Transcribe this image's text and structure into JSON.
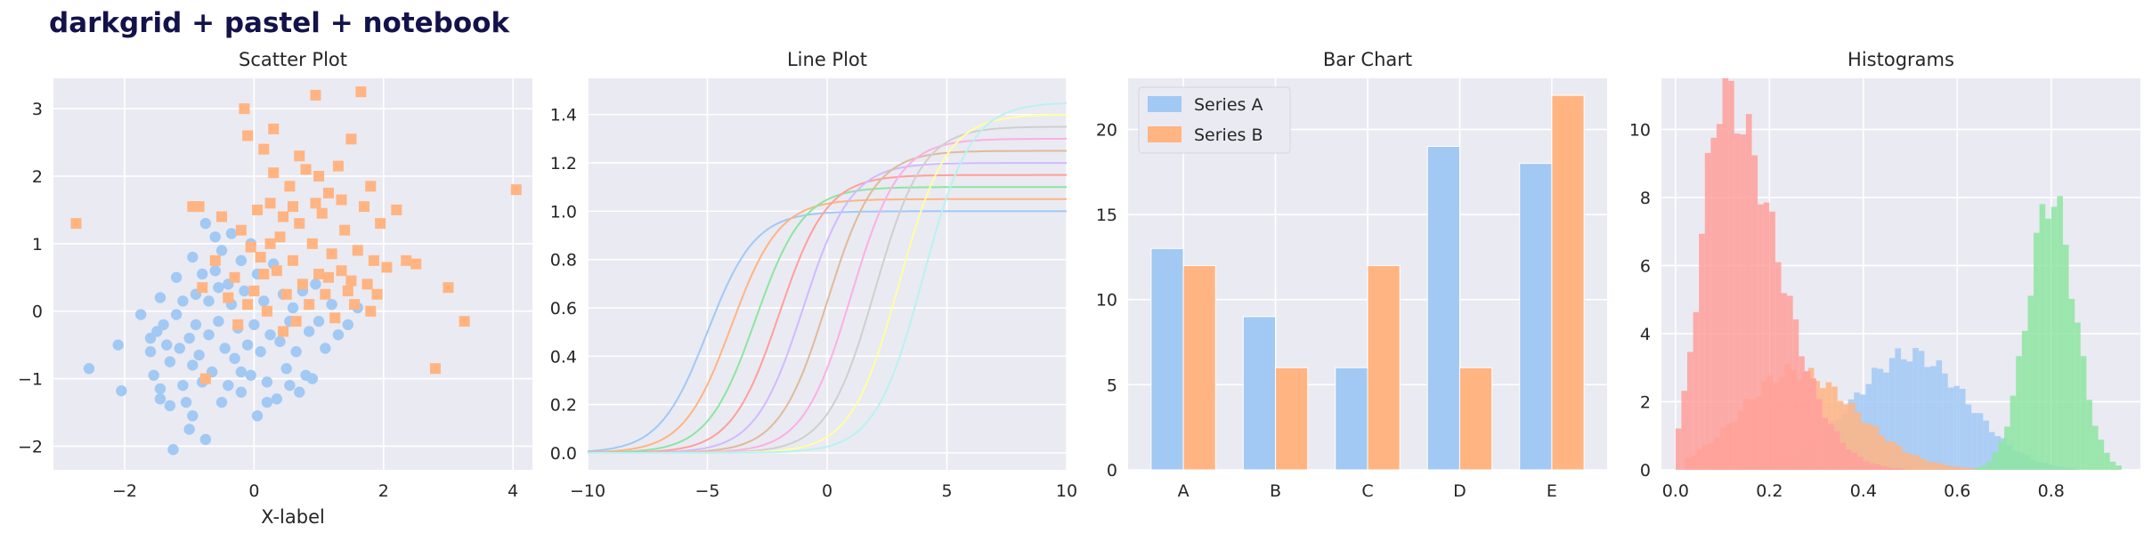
{
  "suptitle": "darkgrid + pastel + notebook",
  "style": {
    "axes_bg": "#eaeaf2",
    "grid": "#ffffff",
    "palette": [
      "#a1c9f4",
      "#ffb482",
      "#8de5a1",
      "#ff9f9b",
      "#d0bbff",
      "#debb9b",
      "#fab0e4",
      "#cfcfcf",
      "#fffea3",
      "#b9f2f0"
    ]
  },
  "chart_data": [
    {
      "type": "scatter",
      "title": "Scatter Plot",
      "xlabel": "X-label",
      "ylabel": "",
      "xlim": [
        -3.1,
        4.3
      ],
      "ylim": [
        -2.35,
        3.45
      ],
      "xticks": [
        -2,
        0,
        2,
        4
      ],
      "yticks": [
        -2,
        -1,
        0,
        1,
        2,
        3
      ],
      "grid": true,
      "series": [
        {
          "marker": "circle",
          "color": "#a1c9f4",
          "points": [
            [
              -2.55,
              -0.85
            ],
            [
              -2.05,
              -1.18
            ],
            [
              -2.1,
              -0.5
            ],
            [
              -1.75,
              -0.05
            ],
            [
              -1.6,
              -0.4
            ],
            [
              -1.6,
              -0.6
            ],
            [
              -1.55,
              -0.95
            ],
            [
              -1.5,
              -0.3
            ],
            [
              -1.45,
              -1.15
            ],
            [
              -1.45,
              0.2
            ],
            [
              -1.4,
              -0.2
            ],
            [
              -1.35,
              -0.5
            ],
            [
              -1.3,
              -1.4
            ],
            [
              -1.3,
              -0.75
            ],
            [
              -1.25,
              -2.05
            ],
            [
              -1.2,
              0.5
            ],
            [
              -1.2,
              -0.05
            ],
            [
              -1.15,
              -0.55
            ],
            [
              -1.1,
              -1.1
            ],
            [
              -1.1,
              0.15
            ],
            [
              -1.05,
              -1.35
            ],
            [
              -1.0,
              -1.75
            ],
            [
              -1.0,
              -0.4
            ],
            [
              -0.95,
              0.8
            ],
            [
              -0.95,
              -0.8
            ],
            [
              -0.9,
              0.25
            ],
            [
              -0.9,
              -0.2
            ],
            [
              -0.85,
              -0.65
            ],
            [
              -0.8,
              0.55
            ],
            [
              -0.8,
              -1.05
            ],
            [
              -0.75,
              1.3
            ],
            [
              -0.75,
              -1.9
            ],
            [
              -0.7,
              0.15
            ],
            [
              -0.7,
              -0.35
            ],
            [
              -0.65,
              -0.9
            ],
            [
              -0.6,
              1.1
            ],
            [
              -0.6,
              0.6
            ],
            [
              -0.55,
              -0.15
            ],
            [
              -0.5,
              -1.35
            ],
            [
              -0.5,
              0.9
            ],
            [
              -0.45,
              -0.55
            ],
            [
              -0.4,
              0.4
            ],
            [
              -0.4,
              -1.1
            ],
            [
              -0.35,
              1.15
            ],
            [
              -0.35,
              0.1
            ],
            [
              -0.3,
              -0.7
            ],
            [
              -0.25,
              -0.25
            ],
            [
              -0.2,
              0.75
            ],
            [
              -0.2,
              -1.2
            ],
            [
              -0.15,
              0.3
            ],
            [
              -0.1,
              -0.5
            ],
            [
              -0.05,
              -0.95
            ],
            [
              -0.05,
              1.0
            ],
            [
              0.0,
              -0.2
            ],
            [
              0.05,
              -1.55
            ],
            [
              0.05,
              0.55
            ],
            [
              0.1,
              -0.6
            ],
            [
              0.15,
              0.15
            ],
            [
              0.2,
              -1.05
            ],
            [
              0.25,
              -0.35
            ],
            [
              0.3,
              0.7
            ],
            [
              0.35,
              -1.3
            ],
            [
              0.4,
              -0.45
            ],
            [
              0.45,
              0.25
            ],
            [
              0.5,
              -0.85
            ],
            [
              0.55,
              -1.1
            ],
            [
              0.6,
              0.05
            ],
            [
              0.65,
              -0.6
            ],
            [
              0.7,
              -1.2
            ],
            [
              0.75,
              0.3
            ],
            [
              0.8,
              -0.95
            ],
            [
              0.85,
              -0.3
            ],
            [
              0.9,
              -1.0
            ],
            [
              0.95,
              0.4
            ],
            [
              1.0,
              -0.15
            ],
            [
              1.1,
              -0.55
            ],
            [
              1.2,
              0.1
            ],
            [
              1.3,
              -0.35
            ],
            [
              1.45,
              -0.2
            ],
            [
              1.6,
              0.05
            ],
            [
              -0.95,
              -1.55
            ],
            [
              -0.55,
              0.35
            ],
            [
              0.2,
              -1.35
            ],
            [
              -0.2,
              -0.9
            ],
            [
              0.55,
              -0.15
            ],
            [
              -1.45,
              -1.3
            ]
          ]
        },
        {
          "marker": "square",
          "color": "#ffb482",
          "points": [
            [
              -2.75,
              1.3
            ],
            [
              -0.95,
              1.55
            ],
            [
              -0.85,
              1.55
            ],
            [
              -0.75,
              -1.0
            ],
            [
              -0.6,
              0.75
            ],
            [
              -0.5,
              1.4
            ],
            [
              -0.4,
              0.2
            ],
            [
              -0.3,
              0.5
            ],
            [
              -0.2,
              1.2
            ],
            [
              -0.15,
              3.0
            ],
            [
              -0.1,
              0.1
            ],
            [
              -0.1,
              2.6
            ],
            [
              -0.05,
              0.95
            ],
            [
              0.0,
              0.3
            ],
            [
              0.05,
              1.5
            ],
            [
              0.1,
              0.8
            ],
            [
              0.15,
              2.4
            ],
            [
              0.2,
              0.0
            ],
            [
              0.25,
              1.6
            ],
            [
              0.3,
              2.05
            ],
            [
              0.35,
              0.6
            ],
            [
              0.4,
              1.1
            ],
            [
              0.45,
              -0.3
            ],
            [
              0.5,
              0.25
            ],
            [
              0.55,
              1.85
            ],
            [
              0.6,
              0.75
            ],
            [
              0.65,
              -0.15
            ],
            [
              0.7,
              1.3
            ],
            [
              0.75,
              0.4
            ],
            [
              0.8,
              2.1
            ],
            [
              0.85,
              0.1
            ],
            [
              0.9,
              1.0
            ],
            [
              0.95,
              3.2
            ],
            [
              1.0,
              0.55
            ],
            [
              1.05,
              1.45
            ],
            [
              1.1,
              0.25
            ],
            [
              1.15,
              1.75
            ],
            [
              1.2,
              0.85
            ],
            [
              1.25,
              -0.1
            ],
            [
              1.3,
              2.15
            ],
            [
              1.35,
              0.6
            ],
            [
              1.4,
              1.2
            ],
            [
              1.45,
              0.3
            ],
            [
              1.5,
              2.55
            ],
            [
              1.55,
              0.1
            ],
            [
              1.6,
              0.9
            ],
            [
              1.65,
              3.25
            ],
            [
              1.7,
              1.55
            ],
            [
              1.75,
              0.4
            ],
            [
              1.8,
              1.85
            ],
            [
              1.85,
              0.75
            ],
            [
              1.9,
              0.25
            ],
            [
              1.95,
              1.3
            ],
            [
              2.05,
              0.65
            ],
            [
              2.2,
              1.5
            ],
            [
              2.35,
              0.75
            ],
            [
              2.5,
              0.7
            ],
            [
              2.8,
              -0.85
            ],
            [
              3.0,
              0.35
            ],
            [
              3.25,
              -0.15
            ],
            [
              4.05,
              1.8
            ],
            [
              -0.25,
              -0.2
            ],
            [
              0.3,
              2.7
            ],
            [
              0.95,
              1.6
            ],
            [
              1.35,
              1.65
            ],
            [
              0.6,
              1.55
            ],
            [
              1.15,
              0.5
            ],
            [
              0.45,
              1.4
            ],
            [
              1.8,
              0.0
            ],
            [
              0.15,
              0.55
            ],
            [
              -0.8,
              0.35
            ],
            [
              0.7,
              2.3
            ],
            [
              1.5,
              0.45
            ],
            [
              1.0,
              2.0
            ],
            [
              0.25,
              1.0
            ]
          ]
        }
      ]
    },
    {
      "type": "line",
      "title": "Line Plot",
      "xlabel": "",
      "ylabel": "",
      "xlim": [
        -10,
        10
      ],
      "ylim": [
        -0.07,
        1.55
      ],
      "xticks": [
        -10,
        -5,
        0,
        5,
        10
      ],
      "yticks": [
        0.0,
        0.2,
        0.4,
        0.6,
        0.8,
        1.0,
        1.2,
        1.4
      ],
      "grid": true,
      "series": [
        {
          "color": "#a1c9f4",
          "center": -5,
          "amplitude": 1.0
        },
        {
          "color": "#ffb482",
          "center": -4,
          "amplitude": 1.05
        },
        {
          "color": "#8de5a1",
          "center": -3,
          "amplitude": 1.1
        },
        {
          "color": "#ff9f9b",
          "center": -2,
          "amplitude": 1.15
        },
        {
          "color": "#d0bbff",
          "center": -1,
          "amplitude": 1.2
        },
        {
          "color": "#debb9b",
          "center": 0,
          "amplitude": 1.25
        },
        {
          "color": "#fab0e4",
          "center": 1,
          "amplitude": 1.3
        },
        {
          "color": "#cfcfcf",
          "center": 2,
          "amplitude": 1.35
        },
        {
          "color": "#fffea3",
          "center": 3,
          "amplitude": 1.4
        },
        {
          "color": "#b9f2f0",
          "center": 4,
          "amplitude": 1.45
        }
      ]
    },
    {
      "type": "bar",
      "title": "Bar Chart",
      "xlabel": "",
      "ylabel": "",
      "categories": [
        "A",
        "B",
        "C",
        "D",
        "E"
      ],
      "ylim": [
        0,
        23
      ],
      "yticks": [
        0,
        5,
        10,
        15,
        20
      ],
      "grid": true,
      "legend_placement": "top-left",
      "series": [
        {
          "name": "Series A",
          "color": "#a1c9f4",
          "values": [
            13,
            9,
            6,
            19,
            18
          ]
        },
        {
          "name": "Series B",
          "color": "#ffb482",
          "values": [
            12,
            6,
            12,
            6,
            22
          ]
        }
      ]
    },
    {
      "type": "histogram",
      "title": "Histograms",
      "xlabel": "",
      "ylabel": "",
      "xlim": [
        -0.03,
        0.99
      ],
      "ylim": [
        0,
        11.5
      ],
      "xticks": [
        0.0,
        0.2,
        0.4,
        0.6,
        0.8
      ],
      "yticks": [
        0,
        2,
        4,
        6,
        8,
        10
      ],
      "grid": true,
      "series": [
        {
          "color": "#a1c9f4",
          "mean": 0.5,
          "sd": 0.12,
          "peak": 3.4,
          "range": [
            0.13,
            0.85
          ]
        },
        {
          "color": "#ffb482",
          "mean": 0.25,
          "sd": 0.11,
          "peak": 2.9,
          "range": [
            0.02,
            0.68
          ],
          "skew": 1.2
        },
        {
          "color": "#8de5a1",
          "mean": 0.8,
          "sd": 0.05,
          "peak": 8.0,
          "range": [
            0.6,
            0.94
          ]
        },
        {
          "color": "#ff9f9b",
          "mean": 0.1,
          "sd": 0.045,
          "peak": 11.0,
          "range": [
            0.0,
            0.55
          ],
          "skew": 2.5
        }
      ]
    }
  ]
}
